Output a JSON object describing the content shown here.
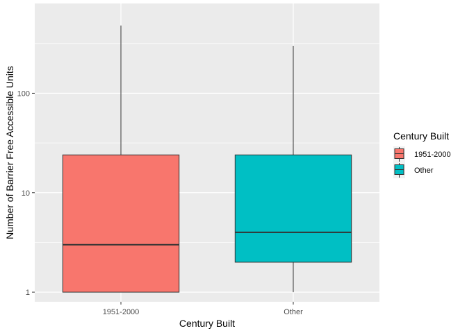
{
  "chart_data": {
    "type": "boxplot",
    "xlabel": "Century Built",
    "ylabel": "Number of Barrier Free Accessible Units",
    "y_scale": "log10",
    "ylim": [
      0.8,
      800
    ],
    "y_ticks": [
      1,
      10,
      100
    ],
    "y_tick_labels": [
      "1",
      "10",
      "100"
    ],
    "categories": [
      "1951-2000",
      "Other"
    ],
    "grid": true,
    "legend": {
      "title": "Century Built",
      "position": "right",
      "entries": [
        "1951-2000",
        "Other"
      ]
    },
    "series": [
      {
        "name": "1951-2000",
        "color": "#F8766D",
        "min": 1,
        "q1": 1,
        "median": 3,
        "q3": 24,
        "max": 480
      },
      {
        "name": "Other",
        "color": "#00BFC4",
        "min": 1,
        "q1": 2,
        "median": 4,
        "q3": 24,
        "max": 300
      }
    ]
  }
}
